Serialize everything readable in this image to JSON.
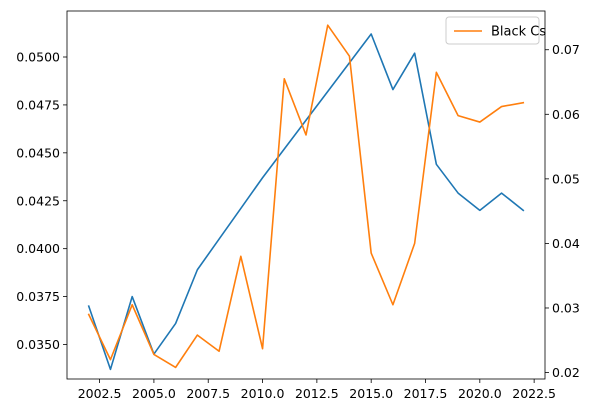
{
  "chart_data": {
    "type": "line",
    "title": "",
    "xlabel": "",
    "ylabel": "",
    "ylabel_right": "",
    "xlim": [
      2001.0,
      2023.0
    ],
    "ylim_left": [
      0.0332,
      0.0524
    ],
    "ylim_right": [
      0.019,
      0.076
    ],
    "x_ticks": [
      2002.5,
      2005.0,
      2007.5,
      2010.0,
      2012.5,
      2015.0,
      2017.5,
      2020.0,
      2022.5
    ],
    "x_tick_labels": [
      "2002.5",
      "2005.0",
      "2007.5",
      "2010.0",
      "2012.5",
      "2015.0",
      "2017.5",
      "2020.0",
      "2022.5"
    ],
    "y_left_ticks": [
      0.035,
      0.0375,
      0.04,
      0.0425,
      0.045,
      0.0475,
      0.05
    ],
    "y_left_tick_labels": [
      "0.0350",
      "0.0375",
      "0.0400",
      "0.0425",
      "0.0450",
      "0.0475",
      "0.0500"
    ],
    "y_right_ticks": [
      0.02,
      0.03,
      0.04,
      0.05,
      0.06,
      0.07
    ],
    "y_right_tick_labels": [
      "0.02",
      "0.03",
      "0.04",
      "0.05",
      "0.06",
      "0.07"
    ],
    "grid": false,
    "legend_position": "top-right",
    "x": [
      2002,
      2003,
      2004,
      2005,
      2006,
      2007,
      2008,
      2009,
      2010,
      2011,
      2012,
      2013,
      2014,
      2015,
      2016,
      2017,
      2018,
      2019,
      2020,
      2021,
      2022
    ],
    "series": [
      {
        "axis": "left",
        "color": "#1f77b4",
        "values": [
          0.037,
          0.0337,
          0.0375,
          0.0345,
          0.0361,
          0.0389,
          0.0405,
          0.0421,
          0.0437,
          0.0452,
          0.0467,
          0.0482,
          0.0497,
          0.0512,
          0.0483,
          0.0502,
          0.0444,
          0.0429,
          0.042,
          0.0429,
          0.042
        ]
      },
      {
        "axis": "right",
        "name": "Black Cs",
        "color": "#ff7f0e",
        "values": [
          0.029,
          0.022,
          0.0305,
          0.0228,
          0.0208,
          0.0258,
          0.0233,
          0.038,
          0.0237,
          0.0655,
          0.0568,
          0.0738,
          0.069,
          0.0385,
          0.0305,
          0.04,
          0.0665,
          0.0598,
          0.0588,
          0.0612,
          0.0618
        ]
      }
    ]
  }
}
